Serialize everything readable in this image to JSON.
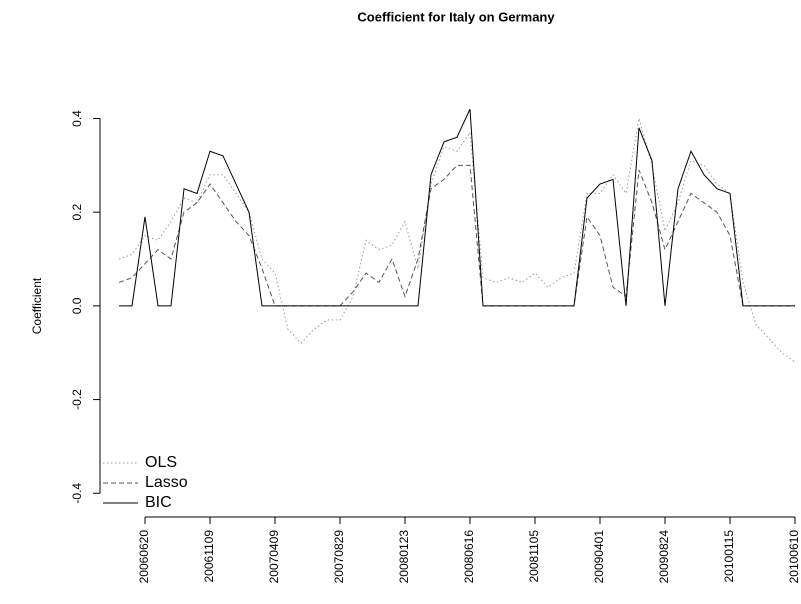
{
  "chart_data": {
    "type": "line",
    "title": "Coefficient for Italy on Germany",
    "ylabel": "Coefficient",
    "categories": [
      null,
      null,
      "20060620",
      null,
      null,
      null,
      null,
      "20061109",
      null,
      null,
      null,
      null,
      "20070409",
      null,
      null,
      null,
      null,
      "20070829",
      null,
      null,
      null,
      null,
      "20080123",
      null,
      null,
      null,
      null,
      "20080616",
      null,
      null,
      null,
      null,
      "20081105",
      null,
      null,
      null,
      null,
      "20090401",
      null,
      null,
      null,
      null,
      "20090824",
      null,
      null,
      null,
      null,
      "20100115",
      null,
      null,
      null,
      null,
      "20100610"
    ],
    "series": [
      {
        "name": "OLS",
        "color": "#999999",
        "dash": "dotted",
        "values": [
          0.1,
          0.11,
          0.15,
          0.14,
          0.18,
          0.23,
          0.22,
          0.28,
          0.28,
          0.24,
          0.2,
          0.1,
          0.07,
          -0.05,
          -0.08,
          -0.05,
          -0.03,
          -0.03,
          0.02,
          0.14,
          0.12,
          0.13,
          0.18,
          0.08,
          0.26,
          0.34,
          0.33,
          0.37,
          0.06,
          0.05,
          0.06,
          0.05,
          0.07,
          0.04,
          0.06,
          0.07,
          0.24,
          0.24,
          0.28,
          0.24,
          0.4,
          0.3,
          0.16,
          0.22,
          0.31,
          0.3,
          0.26,
          0.24,
          0.05,
          -0.04,
          -0.07,
          -0.1,
          -0.12
        ]
      },
      {
        "name": "Lasso",
        "color": "#555555",
        "dash": "dashed",
        "values": [
          0.05,
          0.06,
          0.09,
          0.12,
          0.1,
          0.2,
          0.22,
          0.26,
          0.22,
          0.18,
          0.15,
          0.08,
          0,
          0,
          0,
          0,
          0,
          0,
          0.03,
          0.07,
          0.05,
          0.1,
          0.02,
          0.1,
          0.25,
          0.27,
          0.3,
          0.3,
          0,
          0,
          0,
          0,
          0,
          0,
          0,
          0,
          0.19,
          0.15,
          0.04,
          0.02,
          0.29,
          0.22,
          0.12,
          0.18,
          0.24,
          0.22,
          0.2,
          0.15,
          0,
          0,
          0,
          0,
          0
        ]
      },
      {
        "name": "BIC",
        "color": "#000000",
        "dash": "solid",
        "values": [
          0,
          0,
          0.19,
          0,
          0,
          0.25,
          0.24,
          0.33,
          0.32,
          0.26,
          0.2,
          0,
          0,
          0,
          0,
          0,
          0,
          0,
          0,
          0,
          0,
          0,
          0,
          0,
          0.28,
          0.35,
          0.36,
          0.42,
          0,
          0,
          0,
          0,
          0,
          0,
          0,
          0,
          0.23,
          0.26,
          0.27,
          0,
          0.38,
          0.31,
          0,
          0.25,
          0.33,
          0.28,
          0.25,
          0.24,
          0,
          0,
          0,
          0,
          0
        ]
      }
    ],
    "ylim": [
      -0.44,
      0.48
    ],
    "yticks": [
      -0.4,
      -0.2,
      {
        "value": 0,
        "label": "0.0"
      },
      0.2,
      0.4
    ],
    "legend": "lower left"
  }
}
